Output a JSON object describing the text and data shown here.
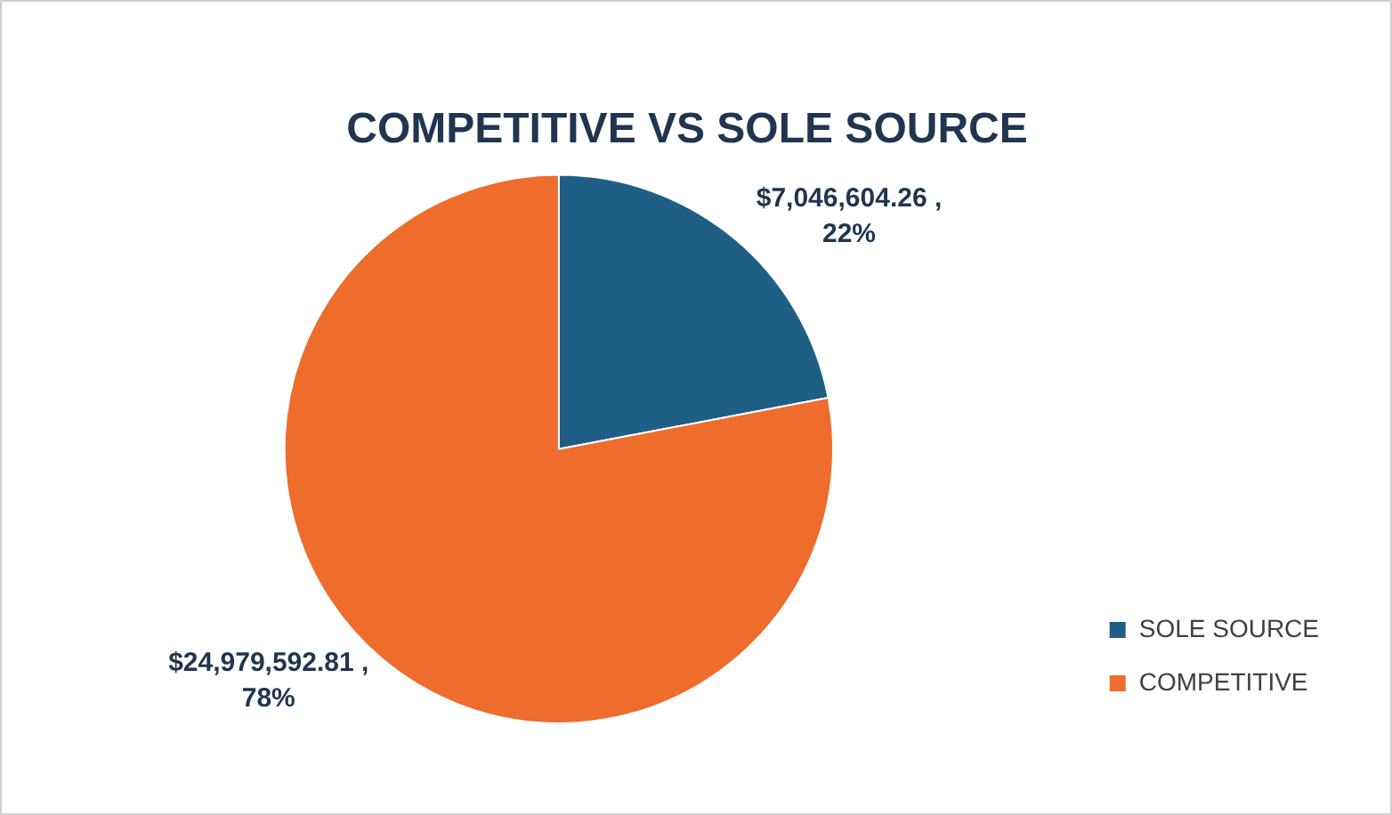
{
  "chart_data": {
    "type": "pie",
    "title": "COMPETITIVE VS SOLE SOURCE",
    "categories": [
      "SOLE SOURCE",
      "COMPETITIVE"
    ],
    "values": [
      7046604.26,
      24979592.81
    ],
    "colors": [
      "#1f5f86",
      "#ee6c2c"
    ],
    "value_labels": [
      "$7,046,604.26 , 22%",
      "$24,979,592.81 , 78%"
    ],
    "legend": "bottom right"
  }
}
